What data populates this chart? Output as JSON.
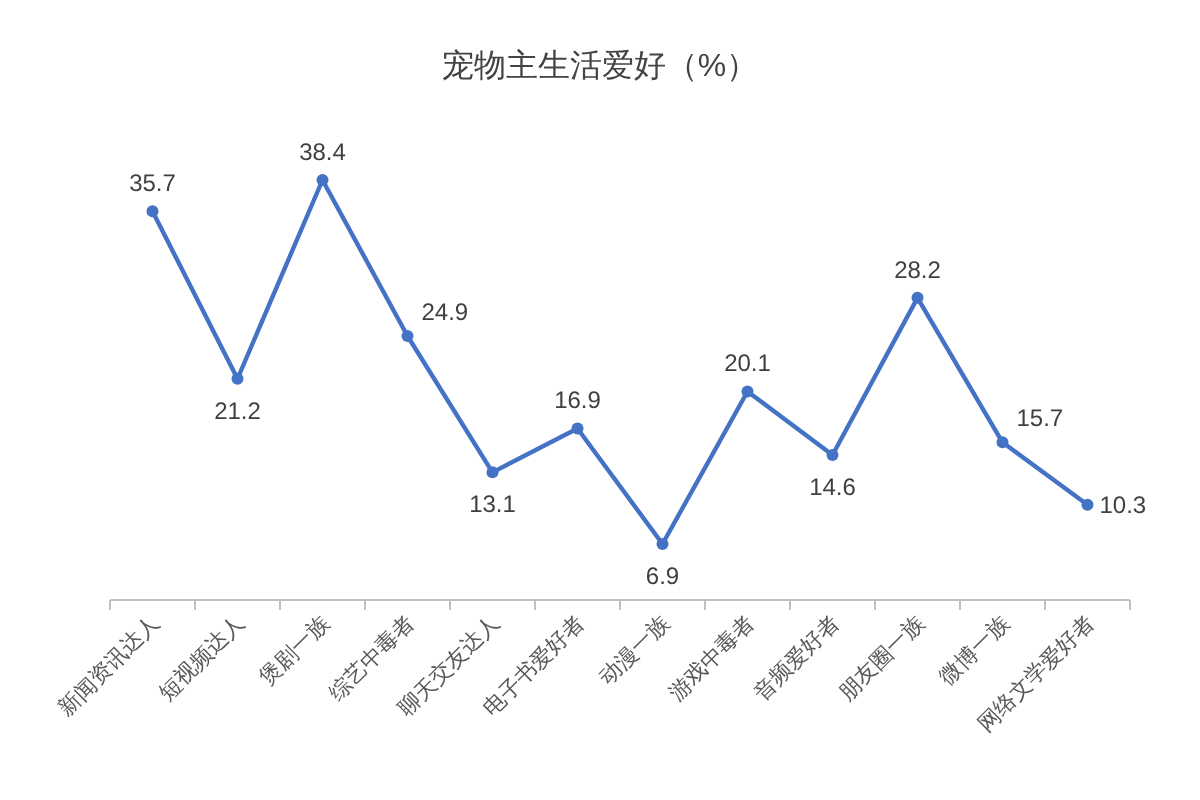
{
  "chart_data": {
    "type": "line",
    "title": "宠物主生活爱好（%）",
    "categories": [
      "新闻资讯达人",
      "短视频达人",
      "煲剧一族",
      "综艺中毒者",
      "聊天交友达人",
      "电子书爱好者",
      "动漫一族",
      "游戏中毒者",
      "音频爱好者",
      "朋友圈一族",
      "微博一族",
      "网络文学爱好者"
    ],
    "series": [
      {
        "color": "#4472c4",
        "values": [
          35.7,
          21.2,
          38.4,
          24.9,
          13.1,
          16.9,
          6.9,
          20.1,
          14.6,
          28.2,
          15.7,
          10.3
        ]
      }
    ],
    "data_labels": true,
    "marker": "circle"
  }
}
